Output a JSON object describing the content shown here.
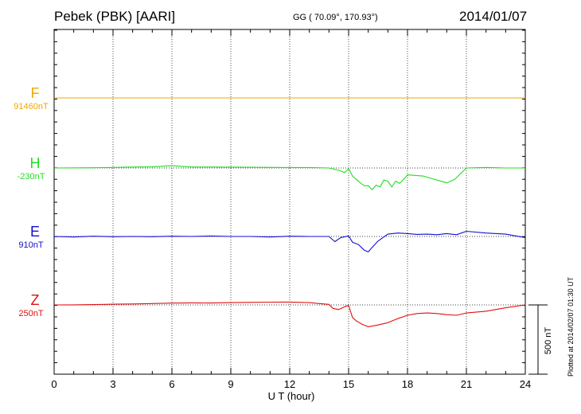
{
  "header": {
    "station": "Pebek (PBK)  [AARI]",
    "coords": "GG ( 70.09°, 170.93°)",
    "date": "2014/01/07"
  },
  "footer": {
    "plotted": "Plotted at 2014/02/07 01:30 UT"
  },
  "colors": {
    "F": "#f0a800",
    "H": "#22dd22",
    "E": "#1010cc",
    "Z": "#e01010"
  },
  "chart_data": {
    "type": "line",
    "xlabel": "U T (hour)",
    "xlim": [
      0,
      24
    ],
    "xticks": [
      "0",
      "3",
      "6",
      "9",
      "12",
      "15",
      "18",
      "21",
      "24"
    ],
    "scale_label": "500 nT",
    "scale_nT": 500,
    "series": [
      {
        "name": "F",
        "base_label": "91460nT",
        "baseline_nT": 91460,
        "x": [
          0,
          24
        ],
        "y": [
          91460,
          91460
        ]
      },
      {
        "name": "H",
        "base_label": "-230nT",
        "baseline_nT": -230,
        "x": [
          0,
          2,
          4,
          5,
          6,
          7,
          8,
          10,
          12,
          13,
          14,
          14.5,
          14.8,
          15,
          15.2,
          15.4,
          15.6,
          15.8,
          16,
          16.2,
          16.4,
          16.6,
          16.8,
          17,
          17.2,
          17.4,
          17.6,
          17.8,
          18,
          18.4,
          18.8,
          19.2,
          19.6,
          20,
          20.4,
          21,
          22,
          23,
          24
        ],
        "y": [
          -230,
          -228,
          -222,
          -220,
          -210,
          -222,
          -222,
          -224,
          -226,
          -226,
          -230,
          -250,
          -270,
          -235,
          -300,
          -330,
          -360,
          -385,
          -385,
          -420,
          -380,
          -395,
          -335,
          -345,
          -395,
          -345,
          -365,
          -330,
          -290,
          -295,
          -300,
          -320,
          -340,
          -360,
          -330,
          -230,
          -225,
          -230,
          -230
        ]
      },
      {
        "name": "E",
        "base_label": "910nT",
        "baseline_nT": 910,
        "x": [
          0,
          1,
          2,
          3,
          4,
          5,
          6,
          7,
          8,
          9,
          10,
          11,
          12,
          13,
          14,
          14.3,
          14.6,
          15,
          15.2,
          15.5,
          15.8,
          16,
          16.2,
          16.5,
          17,
          17.5,
          18,
          18.5,
          19,
          19.5,
          20,
          20.5,
          21,
          22,
          23,
          24
        ],
        "y": [
          910,
          905,
          912,
          908,
          910,
          908,
          912,
          910,
          914,
          910,
          910,
          905,
          912,
          910,
          910,
          865,
          900,
          915,
          860,
          840,
          790,
          775,
          815,
          870,
          930,
          940,
          935,
          928,
          930,
          925,
          935,
          925,
          955,
          940,
          930,
          900
        ]
      },
      {
        "name": "Z",
        "base_label": "250nT",
        "baseline_nT": 250,
        "x": [
          0,
          1,
          2,
          3,
          4,
          5,
          6,
          7,
          8,
          9,
          10,
          11,
          12,
          13,
          13.5,
          14,
          14.2,
          14.5,
          14.8,
          15,
          15.2,
          15.4,
          15.7,
          16,
          16.5,
          17,
          17.5,
          18,
          18.5,
          19,
          19.5,
          20,
          20.5,
          21,
          22,
          23,
          24
        ],
        "y": [
          250,
          251,
          253,
          256,
          258,
          262,
          266,
          268,
          267,
          270,
          272,
          274,
          275,
          270,
          262,
          255,
          220,
          210,
          235,
          245,
          140,
          110,
          80,
          60,
          75,
          95,
          130,
          160,
          175,
          180,
          175,
          165,
          160,
          180,
          195,
          225,
          250
        ]
      }
    ]
  }
}
